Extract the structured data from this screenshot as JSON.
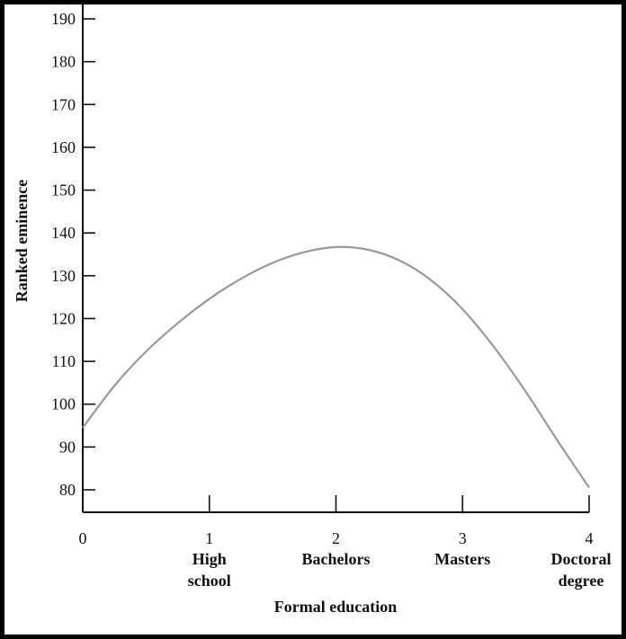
{
  "chart_data": {
    "type": "line",
    "title": "",
    "xlabel": "Formal education",
    "ylabel": "Ranked eminence",
    "xlim": [
      0,
      4
    ],
    "ylim": [
      75,
      192
    ],
    "grid": false,
    "x_ticks": [
      "0",
      "1",
      "2",
      "3",
      "4"
    ],
    "y_ticks": [
      "80",
      "90",
      "100",
      "110",
      "120",
      "130",
      "140",
      "150",
      "160",
      "170",
      "180",
      "190"
    ],
    "categories": [
      {
        "x": 1,
        "lines": [
          "High",
          "school"
        ]
      },
      {
        "x": 2,
        "lines": [
          "Bachelors"
        ]
      },
      {
        "x": 3,
        "lines": [
          "Masters"
        ]
      },
      {
        "x": 4,
        "lines": [
          "Doctoral",
          "degree"
        ]
      }
    ],
    "series": [
      {
        "color": "#999999",
        "points": [
          [
            0.0,
            94.5
          ],
          [
            0.25,
            104.3
          ],
          [
            0.5,
            112.3
          ],
          [
            0.75,
            118.9
          ],
          [
            1.0,
            124.6
          ],
          [
            1.25,
            129.3
          ],
          [
            1.5,
            133.0
          ],
          [
            1.75,
            135.5
          ],
          [
            2.0,
            136.7
          ],
          [
            2.25,
            136.1
          ],
          [
            2.5,
            133.6
          ],
          [
            2.75,
            129.0
          ],
          [
            3.0,
            122.2
          ],
          [
            3.25,
            113.3
          ],
          [
            3.5,
            102.9
          ],
          [
            3.75,
            91.5
          ],
          [
            4.0,
            80.5
          ]
        ]
      }
    ]
  }
}
